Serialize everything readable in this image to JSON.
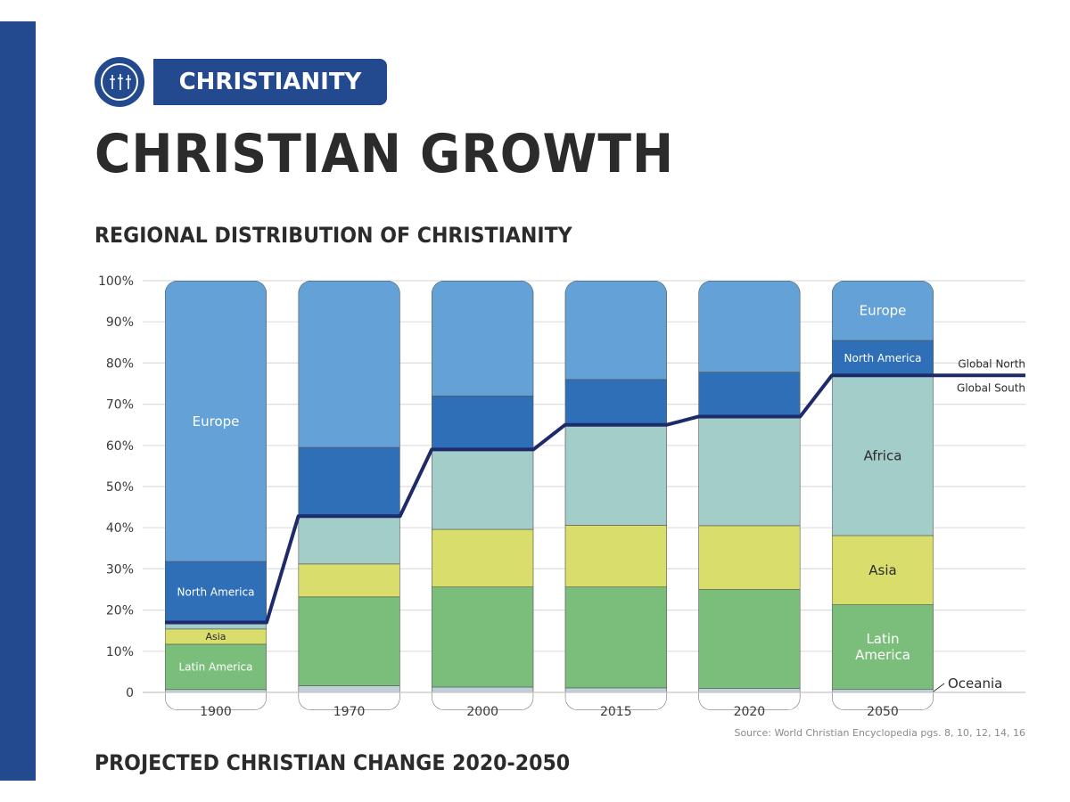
{
  "badge": {
    "label": "CHRISTIANITY",
    "icon": "crosses-icon"
  },
  "title": "CHRISTIAN GROWTH",
  "bottom_title": "PROJECTED CHRISTIAN CHANGE 2020-2050",
  "colors": {
    "stripe": "#234a8e",
    "Oceania": "#bfd0d8",
    "Latin America": "#7bbd7a",
    "Asia": "#d9dd6b",
    "Africa": "#a3cdc8",
    "North America": "#2f6fb7",
    "Europe": "#64a1d6",
    "line": "#1f2a6b"
  },
  "chart_data": {
    "type": "bar",
    "stacked": true,
    "title": "REGIONAL DISTRIBUTION OF CHRISTIANITY",
    "categories": [
      "1900",
      "1970",
      "2000",
      "2015",
      "2020",
      "2050"
    ],
    "y_ticks": [
      "0",
      "10%",
      "20%",
      "30%",
      "40%",
      "50%",
      "60%",
      "70%",
      "80%",
      "90%",
      "100%"
    ],
    "ylim": [
      0,
      100
    ],
    "grid": true,
    "series": [
      {
        "name": "Oceania",
        "values": [
          0.7,
          1.6,
          1.3,
          1.1,
          1.0,
          0.8
        ]
      },
      {
        "name": "Latin America",
        "values": [
          11.0,
          21.6,
          24.3,
          24.5,
          24.0,
          20.5
        ]
      },
      {
        "name": "Asia",
        "values": [
          3.7,
          8.0,
          14.0,
          15.0,
          15.5,
          16.8
        ]
      },
      {
        "name": "Africa",
        "values": [
          1.6,
          11.6,
          19.4,
          24.4,
          26.5,
          38.9
        ]
      },
      {
        "name": "North America",
        "values": [
          14.8,
          16.7,
          13.0,
          11.0,
          10.8,
          8.5
        ]
      },
      {
        "name": "Europe",
        "values": [
          68.2,
          40.5,
          28.0,
          24.0,
          22.2,
          14.5
        ]
      }
    ],
    "bar_labels": [
      {
        "category": "1900",
        "series": "Europe",
        "text": "Europe"
      },
      {
        "category": "1900",
        "series": "North America",
        "text": "North America"
      },
      {
        "category": "1900",
        "series": "Asia",
        "text": "Asia"
      },
      {
        "category": "1900",
        "series": "Latin America",
        "text": "Latin America"
      },
      {
        "category": "2050",
        "series": "Europe",
        "text": "Europe"
      },
      {
        "category": "2050",
        "series": "North America",
        "text": "North America"
      },
      {
        "category": "2050",
        "series": "Africa",
        "text": "Africa"
      },
      {
        "category": "2050",
        "series": "Asia",
        "text": "Asia"
      },
      {
        "category": "2050",
        "series": "Latin America",
        "text": "Latin\nAmerica"
      }
    ],
    "oceania_label": "Oceania",
    "global_south_line": {
      "values": [
        17.0,
        42.8,
        59.0,
        65.0,
        67.0,
        77.0
      ]
    },
    "line_labels": {
      "above": "Global North",
      "below": "Global South"
    }
  },
  "source": "Source: World Christian Encyclopedia pgs. 8, 10, 12, 14, 16"
}
